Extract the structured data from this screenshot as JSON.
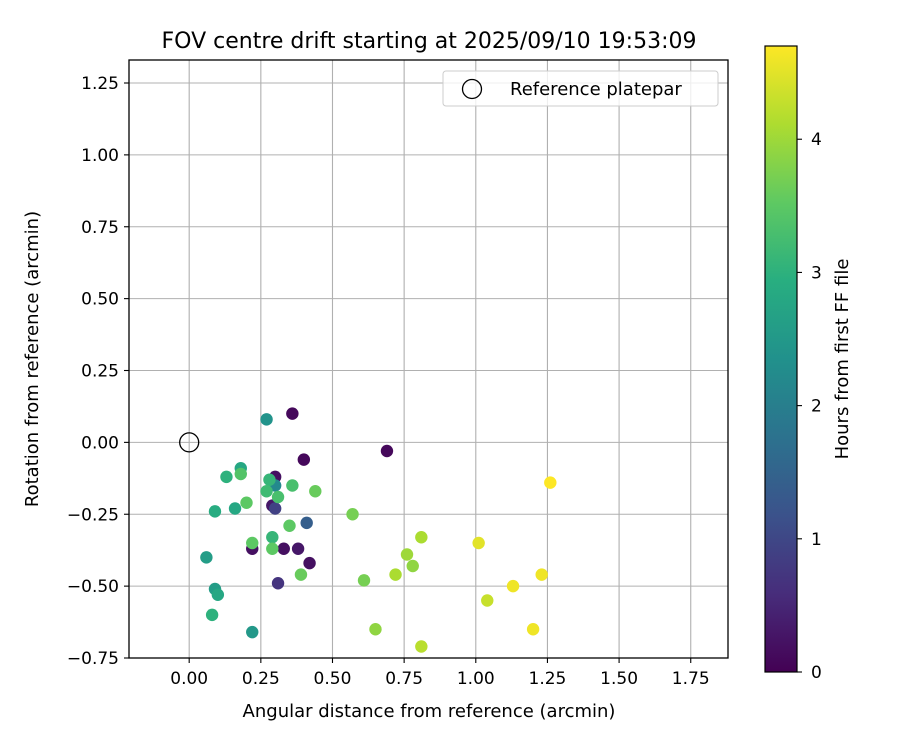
{
  "chart_data": {
    "type": "scatter",
    "title": "FOV centre drift starting at 2025/09/10 19:53:09",
    "xlabel": "Angular distance from reference (arcmin)",
    "ylabel": "Rotation from reference (arcmin)",
    "xlim": [
      -0.21,
      1.88
    ],
    "ylim": [
      -0.75,
      1.33
    ],
    "xticks": [
      0.0,
      0.25,
      0.5,
      0.75,
      1.0,
      1.25,
      1.5,
      1.75
    ],
    "xtick_labels": [
      "0.00",
      "0.25",
      "0.50",
      "0.75",
      "1.00",
      "1.25",
      "1.50",
      "1.75"
    ],
    "yticks": [
      -0.75,
      -0.5,
      -0.25,
      0.0,
      0.25,
      0.5,
      0.75,
      1.0,
      1.25
    ],
    "ytick_labels": [
      "−0.75",
      "−0.50",
      "−0.25",
      "0.00",
      "0.25",
      "0.50",
      "0.75",
      "1.00",
      "1.25"
    ],
    "grid": true,
    "legend": {
      "label": "Reference platepar",
      "placement": "top-right"
    },
    "reference_point": {
      "x": 0.0,
      "y": 0.0
    },
    "colorbar": {
      "label": "Hours from first FF file",
      "colormap": "viridis",
      "range": [
        0,
        4.7
      ],
      "ticks": [
        0,
        1,
        2,
        3,
        4
      ],
      "tick_labels": [
        "0",
        "1",
        "2",
        "3",
        "4"
      ]
    },
    "points": [
      {
        "x": 0.36,
        "y": 0.1,
        "h": 0.1
      },
      {
        "x": 0.69,
        "y": -0.03,
        "h": 0.1
      },
      {
        "x": 0.4,
        "y": -0.06,
        "h": 0.1
      },
      {
        "x": 0.3,
        "y": -0.12,
        "h": 0.2
      },
      {
        "x": 0.29,
        "y": -0.22,
        "h": 0.3
      },
      {
        "x": 0.22,
        "y": -0.37,
        "h": 0.2
      },
      {
        "x": 0.33,
        "y": -0.37,
        "h": 0.2
      },
      {
        "x": 0.38,
        "y": -0.37,
        "h": 0.3
      },
      {
        "x": 0.42,
        "y": -0.42,
        "h": 0.2
      },
      {
        "x": 0.31,
        "y": -0.49,
        "h": 0.7
      },
      {
        "x": 0.3,
        "y": -0.23,
        "h": 0.9
      },
      {
        "x": 0.41,
        "y": -0.28,
        "h": 1.4
      },
      {
        "x": 0.3,
        "y": -0.15,
        "h": 2.2
      },
      {
        "x": 0.27,
        "y": 0.08,
        "h": 2.4
      },
      {
        "x": 0.22,
        "y": -0.66,
        "h": 2.5
      },
      {
        "x": 0.06,
        "y": -0.4,
        "h": 2.6
      },
      {
        "x": 0.09,
        "y": -0.51,
        "h": 2.6
      },
      {
        "x": 0.18,
        "y": -0.09,
        "h": 2.8
      },
      {
        "x": 0.1,
        "y": -0.53,
        "h": 2.8
      },
      {
        "x": 0.16,
        "y": -0.23,
        "h": 2.8
      },
      {
        "x": 0.09,
        "y": -0.24,
        "h": 2.9
      },
      {
        "x": 0.08,
        "y": -0.6,
        "h": 3.0
      },
      {
        "x": 0.13,
        "y": -0.12,
        "h": 3.0
      },
      {
        "x": 0.28,
        "y": -0.13,
        "h": 3.1
      },
      {
        "x": 0.27,
        "y": -0.17,
        "h": 3.2
      },
      {
        "x": 0.29,
        "y": -0.33,
        "h": 3.1
      },
      {
        "x": 0.31,
        "y": -0.19,
        "h": 3.3
      },
      {
        "x": 0.36,
        "y": -0.15,
        "h": 3.3
      },
      {
        "x": 0.18,
        "y": -0.11,
        "h": 3.4
      },
      {
        "x": 0.2,
        "y": -0.21,
        "h": 3.5
      },
      {
        "x": 0.22,
        "y": -0.35,
        "h": 3.5
      },
      {
        "x": 0.29,
        "y": -0.37,
        "h": 3.5
      },
      {
        "x": 0.35,
        "y": -0.29,
        "h": 3.5
      },
      {
        "x": 0.44,
        "y": -0.17,
        "h": 3.6
      },
      {
        "x": 0.39,
        "y": -0.46,
        "h": 3.6
      },
      {
        "x": 0.57,
        "y": -0.25,
        "h": 3.7
      },
      {
        "x": 0.61,
        "y": -0.48,
        "h": 3.7
      },
      {
        "x": 0.65,
        "y": -0.65,
        "h": 3.9
      },
      {
        "x": 0.76,
        "y": -0.39,
        "h": 4.0
      },
      {
        "x": 0.78,
        "y": -0.43,
        "h": 3.9
      },
      {
        "x": 0.72,
        "y": -0.46,
        "h": 4.1
      },
      {
        "x": 0.81,
        "y": -0.33,
        "h": 4.1
      },
      {
        "x": 0.81,
        "y": -0.71,
        "h": 4.2
      },
      {
        "x": 1.01,
        "y": -0.35,
        "h": 4.5
      },
      {
        "x": 1.04,
        "y": -0.55,
        "h": 4.3
      },
      {
        "x": 1.13,
        "y": -0.5,
        "h": 4.6
      },
      {
        "x": 1.2,
        "y": -0.65,
        "h": 4.6
      },
      {
        "x": 1.23,
        "y": -0.46,
        "h": 4.6
      },
      {
        "x": 1.26,
        "y": -0.14,
        "h": 4.7
      }
    ]
  }
}
